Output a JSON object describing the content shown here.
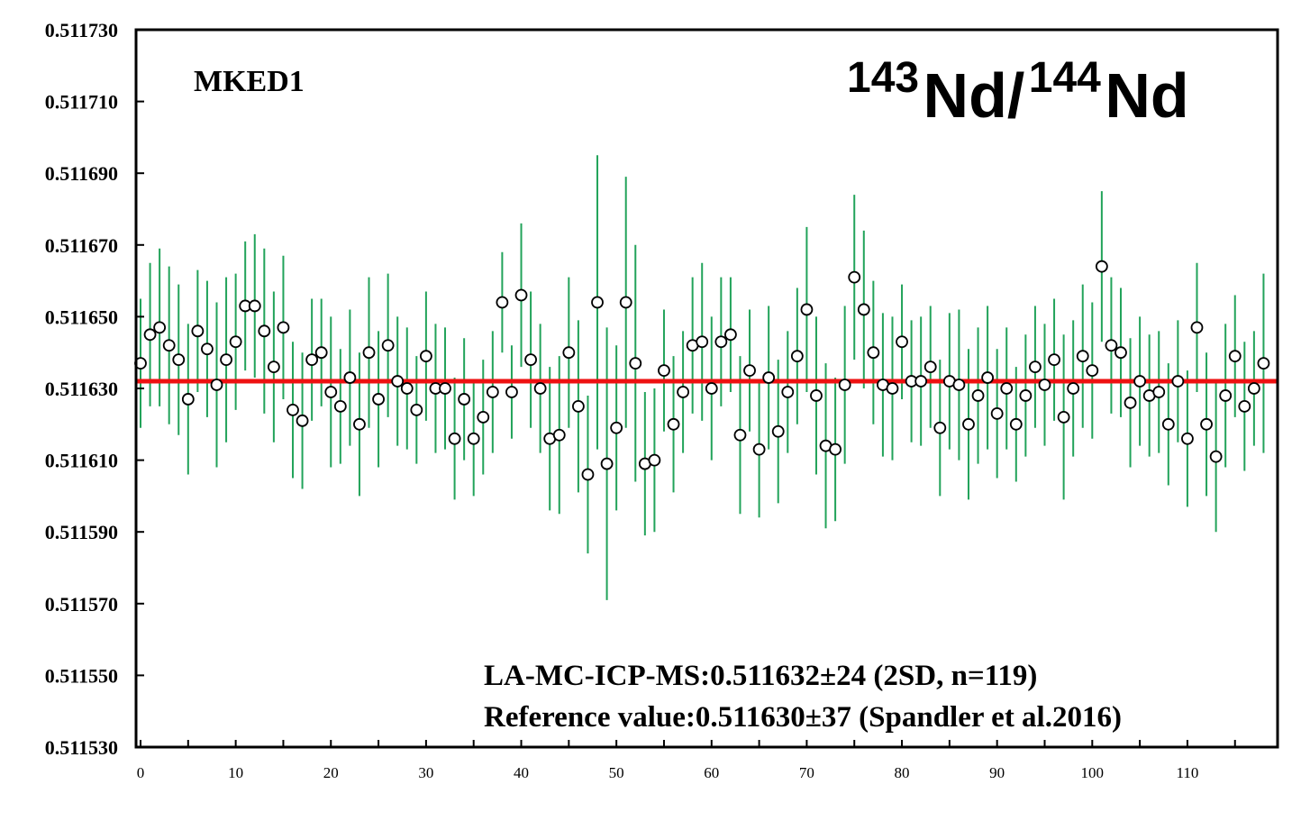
{
  "chart_data": {
    "type": "scatter",
    "sample_label": "MKED1",
    "ratio_title": {
      "mass1": "143",
      "element1": "Nd/",
      "mass2": "144",
      "element2": "Nd"
    },
    "xlim": [
      0,
      119
    ],
    "ylim": [
      0.51153,
      0.51173
    ],
    "x_ticks": [
      0,
      10,
      20,
      30,
      40,
      50,
      60,
      70,
      80,
      90,
      100,
      110
    ],
    "y_ticks": [
      {
        "value": 0.51153,
        "label": "0.511530"
      },
      {
        "value": 0.51155,
        "label": "0.511550"
      },
      {
        "value": 0.51157,
        "label": "0.511570"
      },
      {
        "value": 0.51159,
        "label": "0.511590"
      },
      {
        "value": 0.51161,
        "label": "0.511610"
      },
      {
        "value": 0.51163,
        "label": "0.511630"
      },
      {
        "value": 0.51165,
        "label": "0.511650"
      },
      {
        "value": 0.51167,
        "label": "0.511670"
      },
      {
        "value": 0.51169,
        "label": "0.511690"
      },
      {
        "value": 0.51171,
        "label": "0.511710"
      },
      {
        "value": 0.51173,
        "label": "0.511730"
      }
    ],
    "reference_line": 0.511632,
    "colors": {
      "error_bar": "#22a35a",
      "reference_line": "#ee1111",
      "marker_edge": "#000000",
      "marker_fill": "#ffffff"
    },
    "grid": false,
    "annotations": [
      "LA-MC-ICP-MS:0.511632±24 (2SD, n=119)",
      "Reference value:0.511630±37 (Spandler et al.2016)"
    ],
    "series": [
      {
        "values": [
          0.511637,
          0.511645,
          0.511647,
          0.511642,
          0.511638,
          0.511627,
          0.511646,
          0.511641,
          0.511631,
          0.511638,
          0.511643,
          0.511653,
          0.511653,
          0.511646,
          0.511636,
          0.511647,
          0.511624,
          0.511621,
          0.511638,
          0.51164,
          0.511629,
          0.511625,
          0.511633,
          0.51162,
          0.51164,
          0.511627,
          0.511642,
          0.511632,
          0.51163,
          0.511624,
          0.511639,
          0.51163,
          0.51163,
          0.511616,
          0.511627,
          0.511616,
          0.511622,
          0.511629,
          0.511654,
          0.511629,
          0.511656,
          0.511638,
          0.51163,
          0.511616,
          0.511617,
          0.51164,
          0.511625,
          0.511606,
          0.511654,
          0.511609,
          0.511619,
          0.511654,
          0.511637,
          0.511609,
          0.51161,
          0.511635,
          0.51162,
          0.511629,
          0.511642,
          0.511643,
          0.51163,
          0.511643,
          0.511645,
          0.511617,
          0.511635,
          0.511613,
          0.511633,
          0.511618,
          0.511629,
          0.511639,
          0.511652,
          0.511628,
          0.511614,
          0.511613,
          0.511631,
          0.511661,
          0.511652,
          0.51164,
          0.511631,
          0.51163,
          0.511643,
          0.511632,
          0.511632,
          0.511636,
          0.511619,
          0.511632,
          0.511631,
          0.51162,
          0.511628,
          0.511633,
          0.511623,
          0.51163,
          0.51162,
          0.511628,
          0.511636,
          0.511631,
          0.511638,
          0.511622,
          0.51163,
          0.511639,
          0.511635,
          0.511664,
          0.511642,
          0.51164,
          0.511626,
          0.511632,
          0.511628,
          0.511629,
          0.51162,
          0.511632,
          0.511616,
          0.511647,
          0.51162,
          0.511611,
          0.511628,
          0.511639,
          0.511625,
          0.51163,
          0.511637
        ],
        "errors": [
          18,
          20,
          22,
          22,
          21,
          21,
          17,
          19,
          23,
          23,
          19,
          18,
          20,
          23,
          21,
          20,
          19,
          19,
          17,
          15,
          21,
          16,
          19,
          20,
          21,
          19,
          20,
          18,
          17,
          15,
          18,
          18,
          17,
          17,
          17,
          16,
          16,
          17,
          14,
          13,
          20,
          19,
          18,
          20,
          22,
          21,
          24,
          22,
          41,
          38,
          23,
          35,
          33,
          20,
          20,
          17,
          19,
          17,
          19,
          22,
          20,
          18,
          16,
          22,
          17,
          19,
          20,
          20,
          17,
          19,
          23,
          22,
          23,
          20,
          22,
          23,
          22,
          20,
          20,
          20,
          16,
          17,
          18,
          17,
          19,
          19,
          21,
          21,
          19,
          20,
          18,
          17,
          16,
          17,
          17,
          17,
          17,
          23,
          19,
          20,
          19,
          21,
          19,
          18,
          18,
          18,
          17,
          17,
          17,
          17,
          19,
          18,
          20,
          21,
          20,
          17,
          18,
          16,
          25
        ]
      }
    ]
  }
}
